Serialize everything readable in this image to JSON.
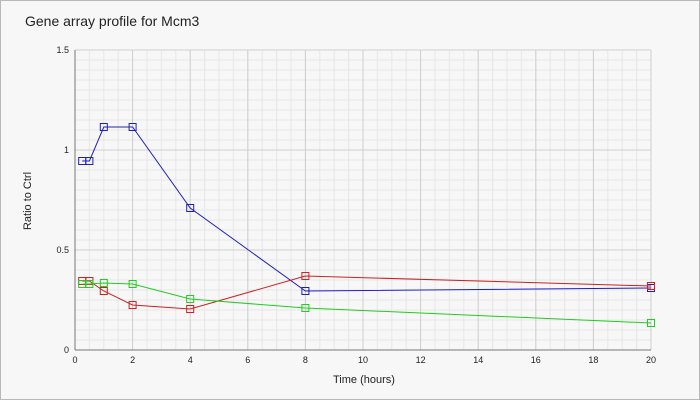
{
  "chart_data": {
    "type": "line",
    "title": "Gene array profile for Mcm3",
    "xlabel": "Time (hours)",
    "ylabel": "Ratio to Ctrl",
    "xlim": [
      0,
      20
    ],
    "ylim": [
      0,
      1.5
    ],
    "x_ticks": [
      0,
      2,
      4,
      6,
      8,
      10,
      12,
      14,
      16,
      18,
      20
    ],
    "y_ticks": [
      0,
      0.5,
      1,
      1.5
    ],
    "y_tick_labels": [
      "0",
      "0.5",
      "1",
      "1.5"
    ],
    "grid": true,
    "series": [
      {
        "color": "#1f1fbf",
        "x": [
          0.25,
          0.5,
          1,
          2,
          4,
          8,
          20
        ],
        "y": [
          0.945,
          0.945,
          1.115,
          1.115,
          0.71,
          0.295,
          0.31
        ]
      },
      {
        "color": "#cc2222",
        "x": [
          0.25,
          0.5,
          1,
          2,
          4,
          8,
          20
        ],
        "y": [
          0.345,
          0.345,
          0.295,
          0.225,
          0.205,
          0.37,
          0.32
        ]
      },
      {
        "color": "#22cc22",
        "x": [
          0.25,
          0.5,
          1,
          2,
          4,
          8,
          20
        ],
        "y": [
          0.33,
          0.33,
          0.335,
          0.33,
          0.255,
          0.21,
          0.135
        ]
      }
    ]
  }
}
